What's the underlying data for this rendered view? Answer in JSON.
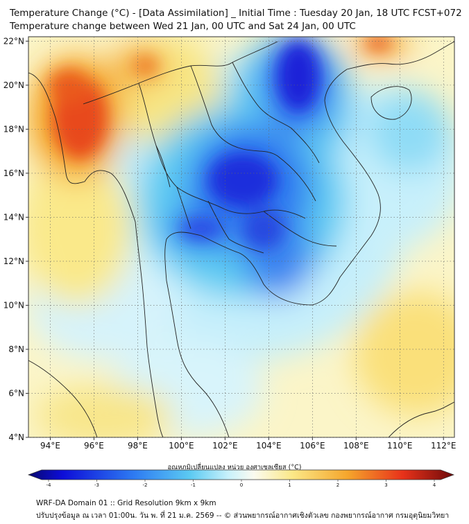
{
  "title_line1": "Temperature Change (°C) - [Data Assimilation] _ Initial Time : Tuesday 20 Jan, 18 UTC FCST+072",
  "title_line2": "Temperature change between Wed 21 Jan, 00 UTC and Sat 24 Jan, 00 UTC",
  "map": {
    "lon_range": [
      93,
      112.5
    ],
    "lat_range": [
      4,
      22.2
    ],
    "lon_ticks": [
      "94°E",
      "96°E",
      "98°E",
      "100°E",
      "102°E",
      "104°E",
      "106°E",
      "108°E",
      "110°E",
      "112°E"
    ],
    "lat_ticks": [
      "22°N",
      "20°N",
      "18°N",
      "16°N",
      "14°N",
      "12°N",
      "10°N",
      "8°N",
      "6°N",
      "4°N"
    ],
    "colors": {
      "deep_blue": "#1a1ad8",
      "blue": "#2f6ff0",
      "cyan": "#5cc8f0",
      "light_cyan": "#bdeefb",
      "white": "#fbfbf3",
      "yellow": "#f8e87a",
      "orange": "#f5a22a",
      "red": "#e83a17",
      "land_border": "#222222"
    }
  },
  "colorbar": {
    "title": "อุณหภูมิเปลี่ยนแปลง หน่วย องศาเซลเซียส (°C)",
    "ticks": [
      "-4",
      "-3",
      "-2",
      "-1",
      "0",
      "1",
      "2",
      "3",
      "4"
    ]
  },
  "footer": {
    "line1": "WRF-DA Domain 01 :: Grid Resolution 9km x 9km",
    "line2": "ปรับปรุงข้อมูล ณ เวลา 01:00น. วัน พ. ที่ 21 ม.ค. 2569 -- © ส่วนพยากรณ์อากาศเชิงตัวเลข กองพยากรณ์อากาศ กรมอุตุนิยมวิทยา"
  }
}
